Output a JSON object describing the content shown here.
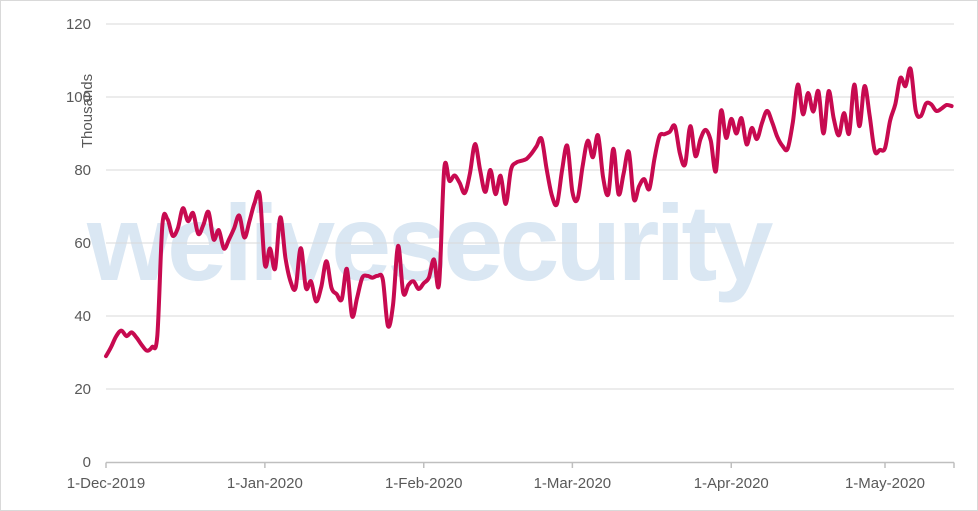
{
  "watermark": {
    "text": "welivesecurity"
  },
  "colors": {
    "line": "#c70a50",
    "watermark": "#dae7f3",
    "gridline": "#d9d9d9",
    "axis": "#bfbfbf",
    "tick_label": "#595959",
    "background": "#ffffff",
    "border": "#d9d9d9"
  },
  "chart_data": {
    "type": "line",
    "title": "",
    "xlabel": "",
    "ylabel": "Thousands",
    "unit": "thousands",
    "grid": "horizontal",
    "legend": "none",
    "ylim": [
      0,
      120
    ],
    "y_ticks": [
      0,
      20,
      40,
      60,
      80,
      100,
      120
    ],
    "x_tick_labels": [
      "1-Dec-2019",
      "1-Jan-2020",
      "1-Feb-2020",
      "1-Mar-2020",
      "1-Apr-2020",
      "1-May-2020"
    ],
    "x_tick_day_offsets": [
      0,
      31,
      62,
      91,
      122,
      152
    ],
    "x_unit": "days since 1-Dec-2019, one point per day",
    "x_start_date": "1-Dec-2019",
    "x_end_date": "14-May-2020",
    "values": [
      29,
      31.5,
      34.5,
      36,
      34.5,
      35.5,
      34,
      32,
      30.5,
      31.5,
      34.5,
      65,
      66.5,
      62,
      64,
      69.5,
      66,
      68.2,
      62.5,
      65,
      68.5,
      61,
      63.5,
      58.5,
      61,
      64,
      67.5,
      61.5,
      66,
      71,
      73,
      54,
      58.5,
      53,
      67,
      56,
      49.5,
      47.7,
      58.6,
      47.7,
      49.5,
      44,
      48,
      55,
      47.7,
      46,
      44.6,
      52.9,
      40,
      45,
      50.5,
      51,
      50.5,
      51,
      50,
      37.3,
      43,
      59.2,
      46.3,
      48.5,
      49.5,
      47.4,
      49,
      50.5,
      55.5,
      48.8,
      80.5,
      77,
      78.5,
      76.5,
      73.7,
      79,
      87.1,
      80,
      74,
      80,
      73.4,
      78.4,
      70.7,
      80,
      82,
      82.5,
      83,
      84.5,
      86.5,
      88.5,
      80,
      73,
      70.7,
      80,
      86.6,
      74,
      72,
      81,
      88,
      83.5,
      89.5,
      78,
      73.4,
      85.8,
      73.4,
      79,
      85,
      72,
      75.5,
      77.5,
      74.8,
      83,
      89.3,
      89.8,
      90.5,
      92,
      84.4,
      81.6,
      92,
      83.8,
      88.5,
      91,
      88,
      79.7,
      96.2,
      88.8,
      94,
      90,
      94.2,
      87,
      91.5,
      88.5,
      92.9,
      96.2,
      93,
      89,
      86.6,
      85.8,
      93,
      103.4,
      95.3,
      101.1,
      96,
      101.6,
      90,
      101.6,
      94,
      89.5,
      95.6,
      90,
      103.4,
      92,
      103,
      95,
      85.2,
      85.5,
      86,
      93.5,
      98,
      105.2,
      103,
      107.7,
      96.2,
      94.8,
      98.2,
      98,
      96.2,
      96.8,
      97.8,
      97.5
    ]
  }
}
